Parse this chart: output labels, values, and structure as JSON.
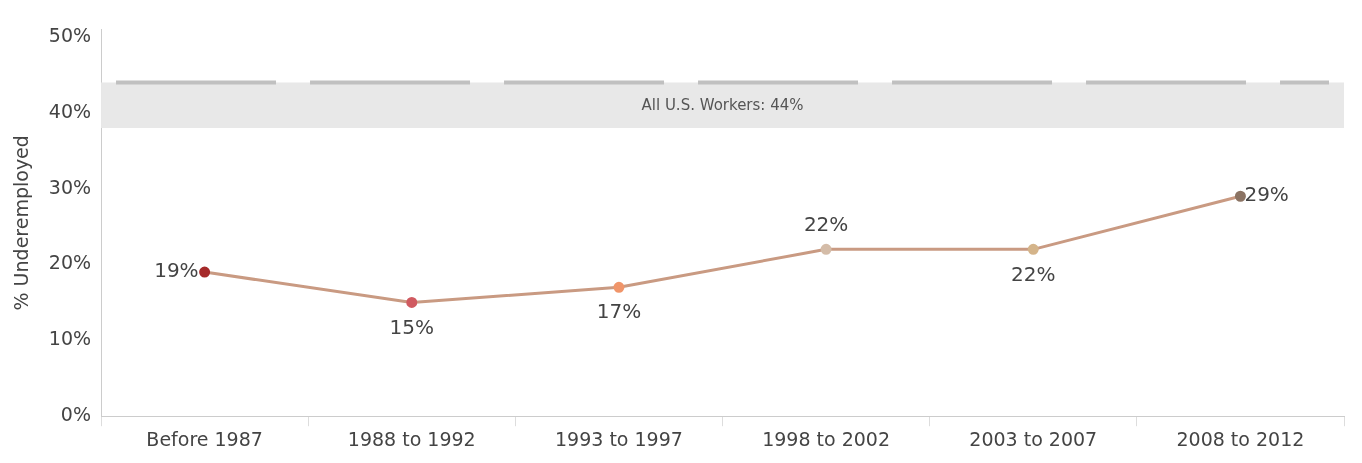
{
  "chart_data": {
    "type": "line",
    "ylabel": "% Underemployed",
    "categories": [
      "Before 1987",
      "1988 to 1992",
      "1993 to 1997",
      "1998 to 2002",
      "2003 to 2007",
      "2008 to 2012"
    ],
    "series": [
      {
        "values": [
          19,
          15,
          17,
          22,
          22,
          29
        ],
        "color": "#c99a82",
        "colors": [
          "#a52a2a",
          "#d05a60",
          "#f0956a",
          "#d4bca8",
          "#d4b48a",
          "#8b7363"
        ]
      }
    ],
    "value_labels": [
      "19%",
      "15%",
      "17%",
      "22%",
      "22%",
      "29%"
    ],
    "ylim": [
      0,
      51
    ],
    "yticks": [
      {
        "value": 0,
        "label": "0%"
      },
      {
        "value": 10,
        "label": "10%"
      },
      {
        "value": 20,
        "label": "20%"
      },
      {
        "value": 30,
        "label": "30%"
      },
      {
        "value": 40,
        "label": "40%"
      },
      {
        "value": 50,
        "label": "50%"
      }
    ],
    "bands": [
      {
        "axis": "y",
        "from": 38,
        "to": 44,
        "color": "#e8e8e8"
      }
    ],
    "ref_lines": [
      {
        "axis": "y",
        "value": 44,
        "label": "All U.S. Workers: 44%",
        "color": "#c0c0c0",
        "line_style": "dashed"
      }
    ],
    "marker": "circle",
    "grid": false,
    "legend": false
  }
}
